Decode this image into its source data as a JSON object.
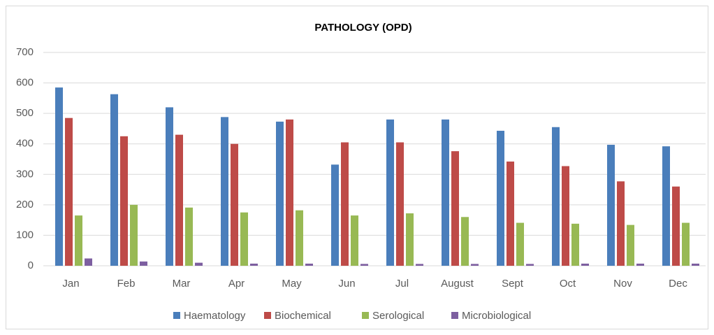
{
  "chart_data": {
    "type": "bar",
    "title": "PATHOLOGY  (OPD)",
    "categories": [
      "Jan",
      "Feb",
      "Mar",
      "Apr",
      "May",
      "Jun",
      "Jul",
      "August",
      "Sept",
      "Oct",
      "Nov",
      "Dec"
    ],
    "series": [
      {
        "name": "Haematology",
        "color": "#4a7ebb",
        "values": [
          585,
          563,
          520,
          488,
          473,
          332,
          480,
          480,
          443,
          455,
          397,
          392
        ]
      },
      {
        "name": "Biochemical",
        "color": "#be4b48",
        "values": [
          485,
          425,
          430,
          400,
          480,
          405,
          405,
          376,
          342,
          327,
          277,
          260
        ]
      },
      {
        "name": "Serological",
        "color": "#98b954",
        "values": [
          165,
          200,
          191,
          175,
          182,
          165,
          172,
          160,
          141,
          138,
          134,
          141
        ]
      },
      {
        "name": "Microbiological",
        "color": "#7d5fa0",
        "values": [
          24,
          14,
          10,
          7,
          7,
          6,
          6,
          6,
          6,
          7,
          7,
          7
        ]
      }
    ],
    "ylim": [
      0,
      700
    ],
    "yticks": [
      0,
      100,
      200,
      300,
      400,
      500,
      600,
      700
    ],
    "grid": true
  }
}
